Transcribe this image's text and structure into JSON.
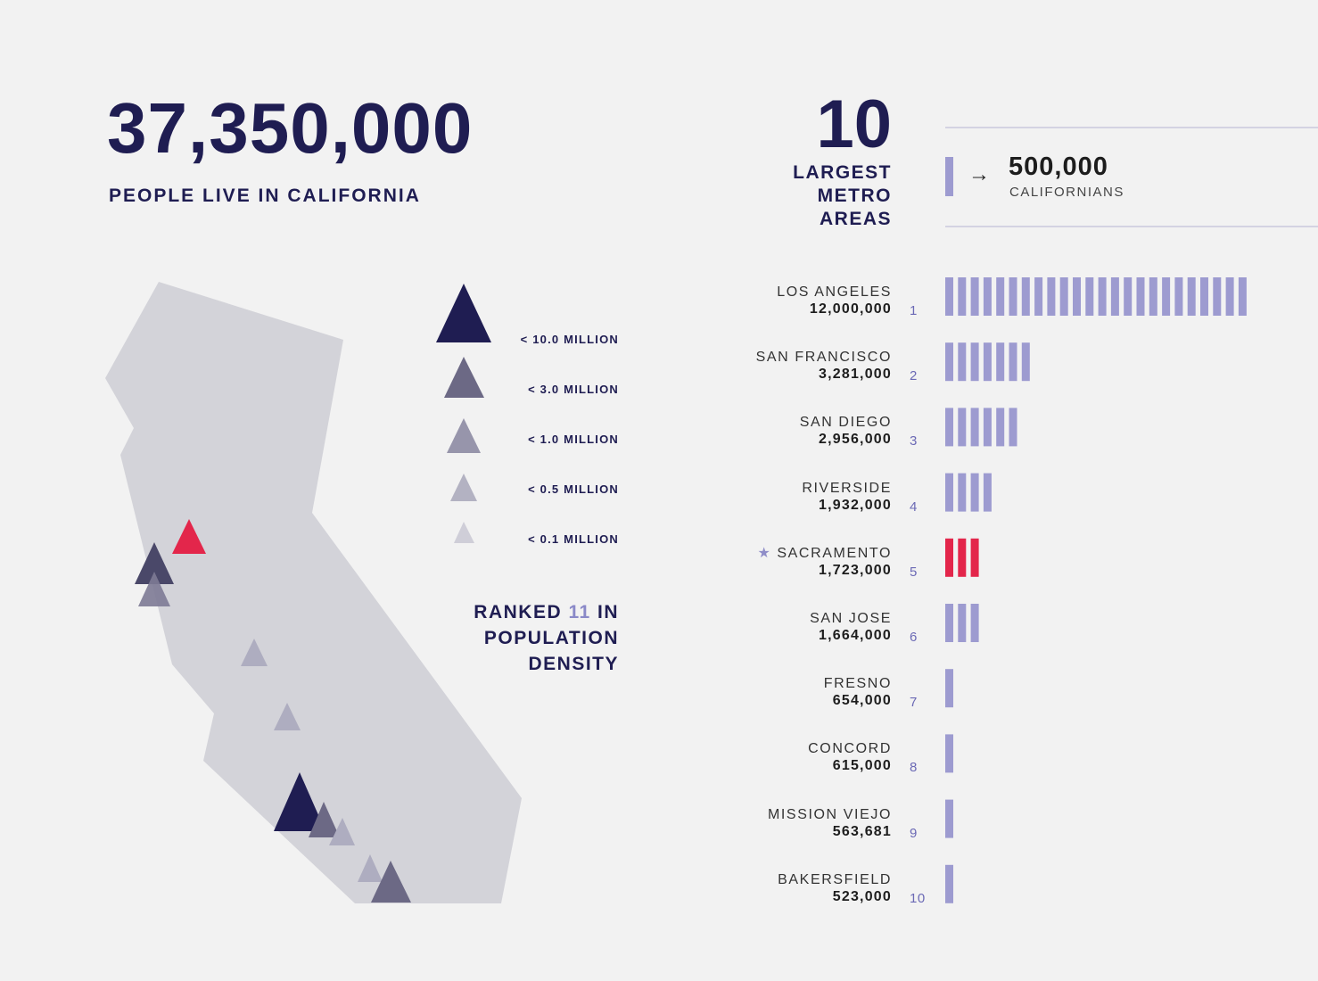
{
  "headline": {
    "number": "37,350,000",
    "caption": "PEOPLE LIVE IN CALIFORNIA"
  },
  "legend": {
    "items": [
      {
        "label": "< 10.0 MILLION",
        "color": "#1f1d52"
      },
      {
        "label": "< 3.0 MILLION",
        "color": "#6c6985"
      },
      {
        "label": "< 1.0 MILLION",
        "color": "#9795ab"
      },
      {
        "label": "< 0.5 MILLION",
        "color": "#b3b2c2"
      },
      {
        "label": "< 0.1 MILLION",
        "color": "#cfced8"
      }
    ]
  },
  "ranked": {
    "prefix": "RANKED ",
    "rank": "11",
    "suffix": " IN",
    "line2": "POPULATION",
    "line3": "DENSITY"
  },
  "top_metros": {
    "number": "10",
    "caption_lines": [
      "LARGEST",
      "METRO",
      "AREAS"
    ]
  },
  "key": {
    "arrow": "→",
    "value": "500,000",
    "caption": "CALIFORNIANS"
  },
  "colors": {
    "navy": "#1f1d52",
    "bar": "#9d9bd0",
    "capital": "#e3264b",
    "state": "#d3d3d9"
  },
  "chart_data": {
    "type": "bar",
    "orientation": "horizontal",
    "unit_per_bar": 500000,
    "categories": [
      "LOS ANGELES",
      "SAN FRANCISCO",
      "SAN DIEGO",
      "RIVERSIDE",
      "SACRAMENTO",
      "SAN JOSE",
      "FRESNO",
      "CONCORD",
      "MISSION VIEJO",
      "BAKERSFIELD"
    ],
    "populations": [
      "12,000,000",
      "3,281,000",
      "2,956,000",
      "1,932,000",
      "1,723,000",
      "1,664,000",
      "654,000",
      "615,000",
      "563,681",
      "523,000"
    ],
    "ranks": [
      "1",
      "2",
      "3",
      "4",
      "5",
      "6",
      "7",
      "8",
      "9",
      "10"
    ],
    "values": [
      12000000,
      3281000,
      2956000,
      1932000,
      1723000,
      1664000,
      654000,
      615000,
      563681,
      523000
    ],
    "bar_counts": [
      24,
      7,
      6,
      4,
      3,
      3,
      1,
      1,
      1,
      1
    ],
    "highlight": "SACRAMENTO",
    "capital_marker": "★"
  }
}
